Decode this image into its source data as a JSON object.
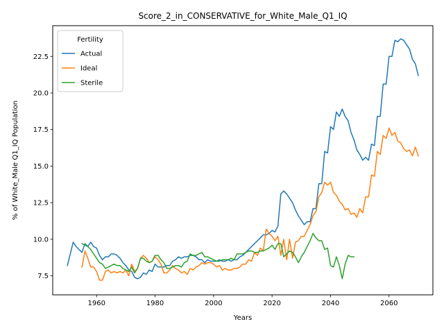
{
  "chart_data": {
    "type": "line",
    "title": "Score_2_in_CONSERVATIVE_for_White_Male_Q1_IQ",
    "xlabel": "Years",
    "ylabel": "% of White_Male Q1_IQ Population",
    "xlim": [
      1945,
      2075
    ],
    "ylim": [
      6.2,
      24.6
    ],
    "xticks": [
      1960,
      1980,
      2000,
      2020,
      2040,
      2060
    ],
    "yticks": [
      7.5,
      10.0,
      12.5,
      15.0,
      17.5,
      20.0,
      22.5
    ],
    "xtick_labels": [
      "1960",
      "1980",
      "2000",
      "2020",
      "2040",
      "2060"
    ],
    "ytick_labels": [
      "7.5",
      "10.0",
      "12.5",
      "15.0",
      "17.5",
      "20.0",
      "22.5"
    ],
    "grid": false,
    "legend": {
      "title": "Fertility",
      "placement": "upper-left"
    },
    "series": [
      {
        "name": "Actual",
        "color": "#1f77b4",
        "x": [
          1950,
          1952,
          1953,
          1954,
          1955,
          1956,
          1957,
          1958,
          1959,
          1960,
          1961,
          1962,
          1963,
          1964,
          1965,
          1966,
          1967,
          1968,
          1969,
          1970,
          1971,
          1972,
          1973,
          1974,
          1975,
          1976,
          1977,
          1978,
          1979,
          1980,
          1981,
          1982,
          1983,
          1984,
          1985,
          1986,
          1987,
          1988,
          1989,
          1990,
          1991,
          1992,
          1993,
          1994,
          1995,
          1996,
          1997,
          1998,
          1999,
          2000,
          2001,
          2002,
          2003,
          2004,
          2005,
          2006,
          2007,
          2008,
          2009,
          2010,
          2011,
          2012,
          2013,
          2014,
          2015,
          2016,
          2017,
          2018,
          2019,
          2020,
          2021,
          2022,
          2023,
          2024,
          2025,
          2026,
          2027,
          2028,
          2029,
          2030,
          2031,
          2032,
          2033,
          2034,
          2035,
          2036,
          2037,
          2038,
          2039,
          2040,
          2041,
          2042,
          2043,
          2044,
          2045,
          2046,
          2047,
          2048,
          2049,
          2050,
          2051,
          2052,
          2053,
          2054,
          2055,
          2056,
          2057,
          2058,
          2059,
          2060,
          2061,
          2062,
          2063,
          2064,
          2065,
          2066,
          2067,
          2068,
          2069,
          2070
        ],
        "y": [
          8.2,
          9.8,
          9.5,
          9.3,
          9.1,
          9.7,
          9.5,
          9.8,
          9.5,
          9.4,
          8.9,
          8.6,
          8.8,
          8.8,
          9.0,
          9.0,
          8.9,
          8.7,
          8.4,
          8.2,
          7.9,
          7.8,
          7.4,
          7.3,
          7.4,
          7.7,
          7.6,
          7.9,
          7.8,
          8.3,
          8.1,
          8.1,
          8.1,
          8.2,
          8.2,
          8.5,
          8.6,
          8.8,
          8.7,
          8.8,
          8.8,
          8.9,
          8.9,
          8.8,
          8.6,
          8.6,
          8.4,
          8.6,
          8.5,
          8.5,
          8.5,
          8.6,
          8.5,
          8.5,
          8.6,
          8.5,
          8.6,
          8.6,
          8.8,
          8.9,
          9.1,
          9.3,
          9.5,
          9.7,
          9.9,
          10.1,
          10.3,
          10.3,
          10.4,
          10.6,
          10.5,
          10.9,
          13.1,
          13.3,
          13.1,
          12.8,
          12.5,
          12.0,
          11.6,
          11.3,
          11.0,
          11.2,
          11.2,
          12.1,
          12.1,
          13.8,
          13.8,
          16.0,
          15.9,
          17.7,
          17.5,
          18.7,
          18.4,
          18.9,
          18.4,
          18.1,
          17.3,
          16.8,
          16.1,
          15.8,
          15.4,
          15.6,
          15.4,
          16.5,
          16.4,
          18.4,
          18.4,
          20.6,
          20.6,
          22.5,
          22.5,
          23.6,
          23.5,
          23.7,
          23.6,
          23.3,
          23.0,
          22.3,
          22.0,
          21.2
        ]
      },
      {
        "name": "Ideal",
        "color": "#ff7f0e",
        "x": [
          1955,
          1956,
          1957,
          1958,
          1959,
          1960,
          1961,
          1962,
          1963,
          1964,
          1965,
          1966,
          1967,
          1968,
          1969,
          1970,
          1971,
          1972,
          1973,
          1974,
          1975,
          1976,
          1977,
          1978,
          1979,
          1980,
          1981,
          1982,
          1983,
          1984,
          1985,
          1986,
          1987,
          1988,
          1989,
          1990,
          1991,
          1992,
          1993,
          1994,
          1995,
          1996,
          1997,
          1998,
          1999,
          2000,
          2001,
          2002,
          2003,
          2004,
          2005,
          2006,
          2007,
          2008,
          2009,
          2010,
          2011,
          2012,
          2013,
          2014,
          2015,
          2016,
          2017,
          2018,
          2019,
          2020,
          2021,
          2022,
          2023,
          2024,
          2025,
          2026,
          2027,
          2028,
          2029,
          2030,
          2031,
          2032,
          2033,
          2034,
          2035,
          2036,
          2037,
          2038,
          2039,
          2040,
          2041,
          2042,
          2043,
          2044,
          2045,
          2046,
          2047,
          2048,
          2049,
          2050,
          2051,
          2052,
          2053,
          2054,
          2055,
          2056,
          2057,
          2058,
          2059,
          2060,
          2061,
          2062,
          2063,
          2064,
          2065,
          2066,
          2067,
          2068,
          2069,
          2070
        ],
        "y": [
          8.1,
          9.2,
          8.7,
          8.1,
          8.1,
          7.8,
          7.2,
          7.2,
          7.8,
          7.9,
          7.7,
          7.8,
          7.7,
          7.8,
          7.7,
          7.9,
          7.5,
          8.3,
          7.8,
          8.0,
          8.7,
          8.9,
          8.7,
          8.4,
          8.5,
          8.8,
          8.6,
          8.3,
          7.7,
          7.7,
          7.9,
          8.2,
          8.0,
          7.9,
          7.7,
          7.8,
          7.6,
          8.0,
          7.9,
          8.1,
          8.2,
          8.4,
          8.3,
          8.4,
          8.4,
          8.3,
          8.1,
          8.2,
          7.9,
          8.0,
          7.9,
          7.9,
          8.0,
          8.0,
          8.1,
          8.3,
          8.3,
          8.6,
          8.5,
          9.1,
          8.9,
          9.4,
          9.2,
          10.7,
          10.4,
          10.2,
          9.9,
          10.2,
          8.9,
          10.0,
          8.6,
          10.0,
          8.7,
          9.8,
          9.9,
          10.2,
          10.2,
          10.6,
          11.0,
          11.6,
          11.9,
          12.9,
          13.2,
          13.9,
          13.7,
          13.9,
          13.2,
          13.0,
          12.6,
          12.4,
          12.0,
          12.1,
          11.7,
          11.8,
          11.5,
          12.1,
          11.8,
          12.9,
          12.9,
          14.4,
          14.3,
          16.0,
          15.8,
          17.1,
          16.9,
          17.6,
          17.1,
          17.3,
          16.7,
          16.6,
          16.2,
          16.0,
          16.1,
          15.7,
          16.3,
          15.7
        ]
      },
      {
        "name": "Sterile",
        "color": "#2ca02c",
        "x": [
          1955,
          1956,
          1957,
          1958,
          1959,
          1960,
          1961,
          1962,
          1963,
          1964,
          1965,
          1966,
          1967,
          1968,
          1969,
          1970,
          1971,
          1972,
          1973,
          1974,
          1975,
          1976,
          1977,
          1978,
          1979,
          1980,
          1981,
          1982,
          1983,
          1984,
          1985,
          1986,
          1987,
          1988,
          1989,
          1990,
          1991,
          1992,
          1993,
          1994,
          1995,
          1996,
          1997,
          1998,
          1999,
          2000,
          2001,
          2002,
          2003,
          2004,
          2005,
          2006,
          2007,
          2008,
          2009,
          2010,
          2011,
          2012,
          2013,
          2014,
          2015,
          2016,
          2017,
          2018,
          2019,
          2020,
          2021,
          2022,
          2023,
          2024,
          2025,
          2026,
          2027,
          2028,
          2029,
          2030,
          2031,
          2032,
          2033,
          2034,
          2035,
          2036,
          2037,
          2038,
          2039,
          2040,
          2041,
          2042,
          2043,
          2044,
          2045,
          2046,
          2047,
          2048
        ],
        "y": [
          9.7,
          9.6,
          9.5,
          9.3,
          9.0,
          8.7,
          8.4,
          8.3,
          8.0,
          8.1,
          8.2,
          8.3,
          8.2,
          8.2,
          8.0,
          7.9,
          7.8,
          8.1,
          7.7,
          8.0,
          8.7,
          8.7,
          8.5,
          8.4,
          8.5,
          8.9,
          8.9,
          8.6,
          8.4,
          8.0,
          8.0,
          8.1,
          8.2,
          8.2,
          8.1,
          8.4,
          8.5,
          9.0,
          8.9,
          8.9,
          9.0,
          9.1,
          8.8,
          8.8,
          8.7,
          8.6,
          8.5,
          8.5,
          8.6,
          8.6,
          8.6,
          8.7,
          8.6,
          9.0,
          9.0,
          9.0,
          9.1,
          9.2,
          9.2,
          9.1,
          9.1,
          9.2,
          9.2,
          9.3,
          9.4,
          9.6,
          9.3,
          9.7,
          9.7,
          8.8,
          9.0,
          9.2,
          9.1,
          8.8,
          8.4,
          8.8,
          9.1,
          9.5,
          9.9,
          10.4,
          10.1,
          9.9,
          9.9,
          9.3,
          9.4,
          8.2,
          8.1,
          8.8,
          8.2,
          7.3,
          8.3,
          8.9,
          8.8,
          8.8
        ]
      }
    ]
  }
}
